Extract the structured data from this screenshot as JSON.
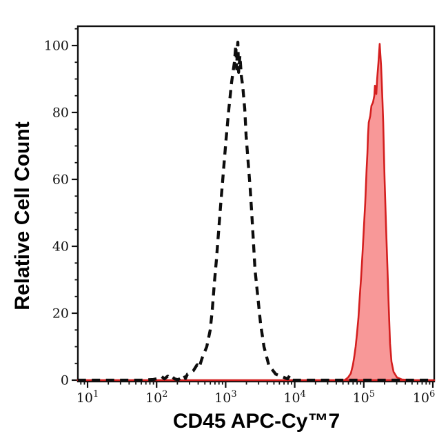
{
  "figure": {
    "background": "#ffffff",
    "title": ""
  },
  "chart_data": {
    "type": "area",
    "title": "",
    "xlabel": "CD45 APC-Cy™7",
    "ylabel": "Relative Cell Count",
    "x_scale": "log10",
    "xlim_exp": [
      0.86,
      6.02
    ],
    "ylim": [
      0,
      105.8
    ],
    "grid": false,
    "legend": null,
    "x_tick_base": "10",
    "x_tick_exponents": [
      1,
      2,
      3,
      4,
      5,
      6
    ],
    "y_ticks": [
      0,
      20,
      40,
      60,
      80,
      100
    ],
    "y_minor_step": 5,
    "axis_color": "#111111",
    "series": [
      {
        "id": "dashed-black-control",
        "style": "dashed-line",
        "stroke": "#0d0d0d",
        "fill": "none",
        "peak_x": 1500,
        "peak_y": 101,
        "points": [
          [
            7.2,
            0
          ],
          [
            30,
            0
          ],
          [
            60,
            0
          ],
          [
            90,
            0.2
          ],
          [
            105,
            0.5
          ],
          [
            118,
            1.1
          ],
          [
            130,
            0.4
          ],
          [
            145,
            1.2
          ],
          [
            158,
            0.5
          ],
          [
            170,
            0.9
          ],
          [
            185,
            0.3
          ],
          [
            205,
            0.15
          ],
          [
            228,
            0.7
          ],
          [
            250,
            1.5
          ],
          [
            262,
            0.5
          ],
          [
            280,
            1.8
          ],
          [
            300,
            2.0
          ],
          [
            340,
            2.8
          ],
          [
            386,
            4.6
          ],
          [
            414,
            3.8
          ],
          [
            455,
            6.5
          ],
          [
            533,
            10
          ],
          [
            597,
            15
          ],
          [
            640,
            21
          ],
          [
            686,
            29
          ],
          [
            735,
            36
          ],
          [
            787,
            44
          ],
          [
            843,
            52
          ],
          [
            925,
            62
          ],
          [
            1014,
            72
          ],
          [
            1112,
            81
          ],
          [
            1219,
            89
          ],
          [
            1337,
            95
          ],
          [
            1400,
            100
          ],
          [
            1445,
            93
          ],
          [
            1475,
            99
          ],
          [
            1500,
            101
          ],
          [
            1540,
            92
          ],
          [
            1607,
            97
          ],
          [
            1683,
            91
          ],
          [
            1762,
            88
          ],
          [
            1888,
            81
          ],
          [
            1977,
            73
          ],
          [
            2118,
            65
          ],
          [
            2270,
            57
          ],
          [
            2432,
            47
          ],
          [
            2661,
            33
          ],
          [
            2917,
            25
          ],
          [
            3199,
            17
          ],
          [
            3589,
            10
          ],
          [
            4217,
            4.5
          ],
          [
            5308,
            1.8
          ],
          [
            6998,
            0.8
          ],
          [
            7900,
            0.4
          ],
          [
            8400,
            1.3
          ],
          [
            8900,
            0.1
          ],
          [
            9420,
            0
          ],
          [
            20000,
            0
          ],
          [
            60000,
            0
          ],
          [
            150000,
            0
          ],
          [
            400000,
            0
          ],
          [
            800000,
            0
          ],
          [
            1047000,
            0
          ]
        ]
      },
      {
        "id": "red-filled-stained",
        "style": "filled-line",
        "stroke": "#d41f1f",
        "fill": "rgba(242,68,68,0.55)",
        "peak_x": 170000,
        "peak_y": 100.5,
        "points": [
          [
            7.2,
            0
          ],
          [
            2000,
            0
          ],
          [
            30000,
            0
          ],
          [
            52800,
            0
          ],
          [
            59200,
            0.8
          ],
          [
            64900,
            2
          ],
          [
            69500,
            4.5
          ],
          [
            72800,
            7
          ],
          [
            76200,
            10
          ],
          [
            79800,
            14
          ],
          [
            83500,
            18.5
          ],
          [
            87500,
            25
          ],
          [
            91600,
            31
          ],
          [
            95900,
            38
          ],
          [
            100000,
            45
          ],
          [
            105000,
            53
          ],
          [
            110000,
            63
          ],
          [
            113000,
            68
          ],
          [
            115000,
            73
          ],
          [
            118000,
            77
          ],
          [
            124000,
            79
          ],
          [
            129000,
            82
          ],
          [
            136000,
            83
          ],
          [
            142000,
            85
          ],
          [
            145000,
            88
          ],
          [
            152000,
            85.5
          ],
          [
            156000,
            90
          ],
          [
            163000,
            95
          ],
          [
            170000,
            100.5
          ],
          [
            178000,
            94
          ],
          [
            182000,
            89
          ],
          [
            187000,
            83
          ],
          [
            191000,
            77
          ],
          [
            195000,
            69
          ],
          [
            200000,
            60
          ],
          [
            210000,
            46
          ],
          [
            219000,
            35
          ],
          [
            230000,
            22
          ],
          [
            240000,
            11
          ],
          [
            252000,
            5.5
          ],
          [
            270000,
            2.5
          ],
          [
            303000,
            0.8
          ],
          [
            356000,
            0.2
          ],
          [
            500000,
            0
          ],
          [
            1047000,
            0
          ]
        ]
      }
    ]
  }
}
